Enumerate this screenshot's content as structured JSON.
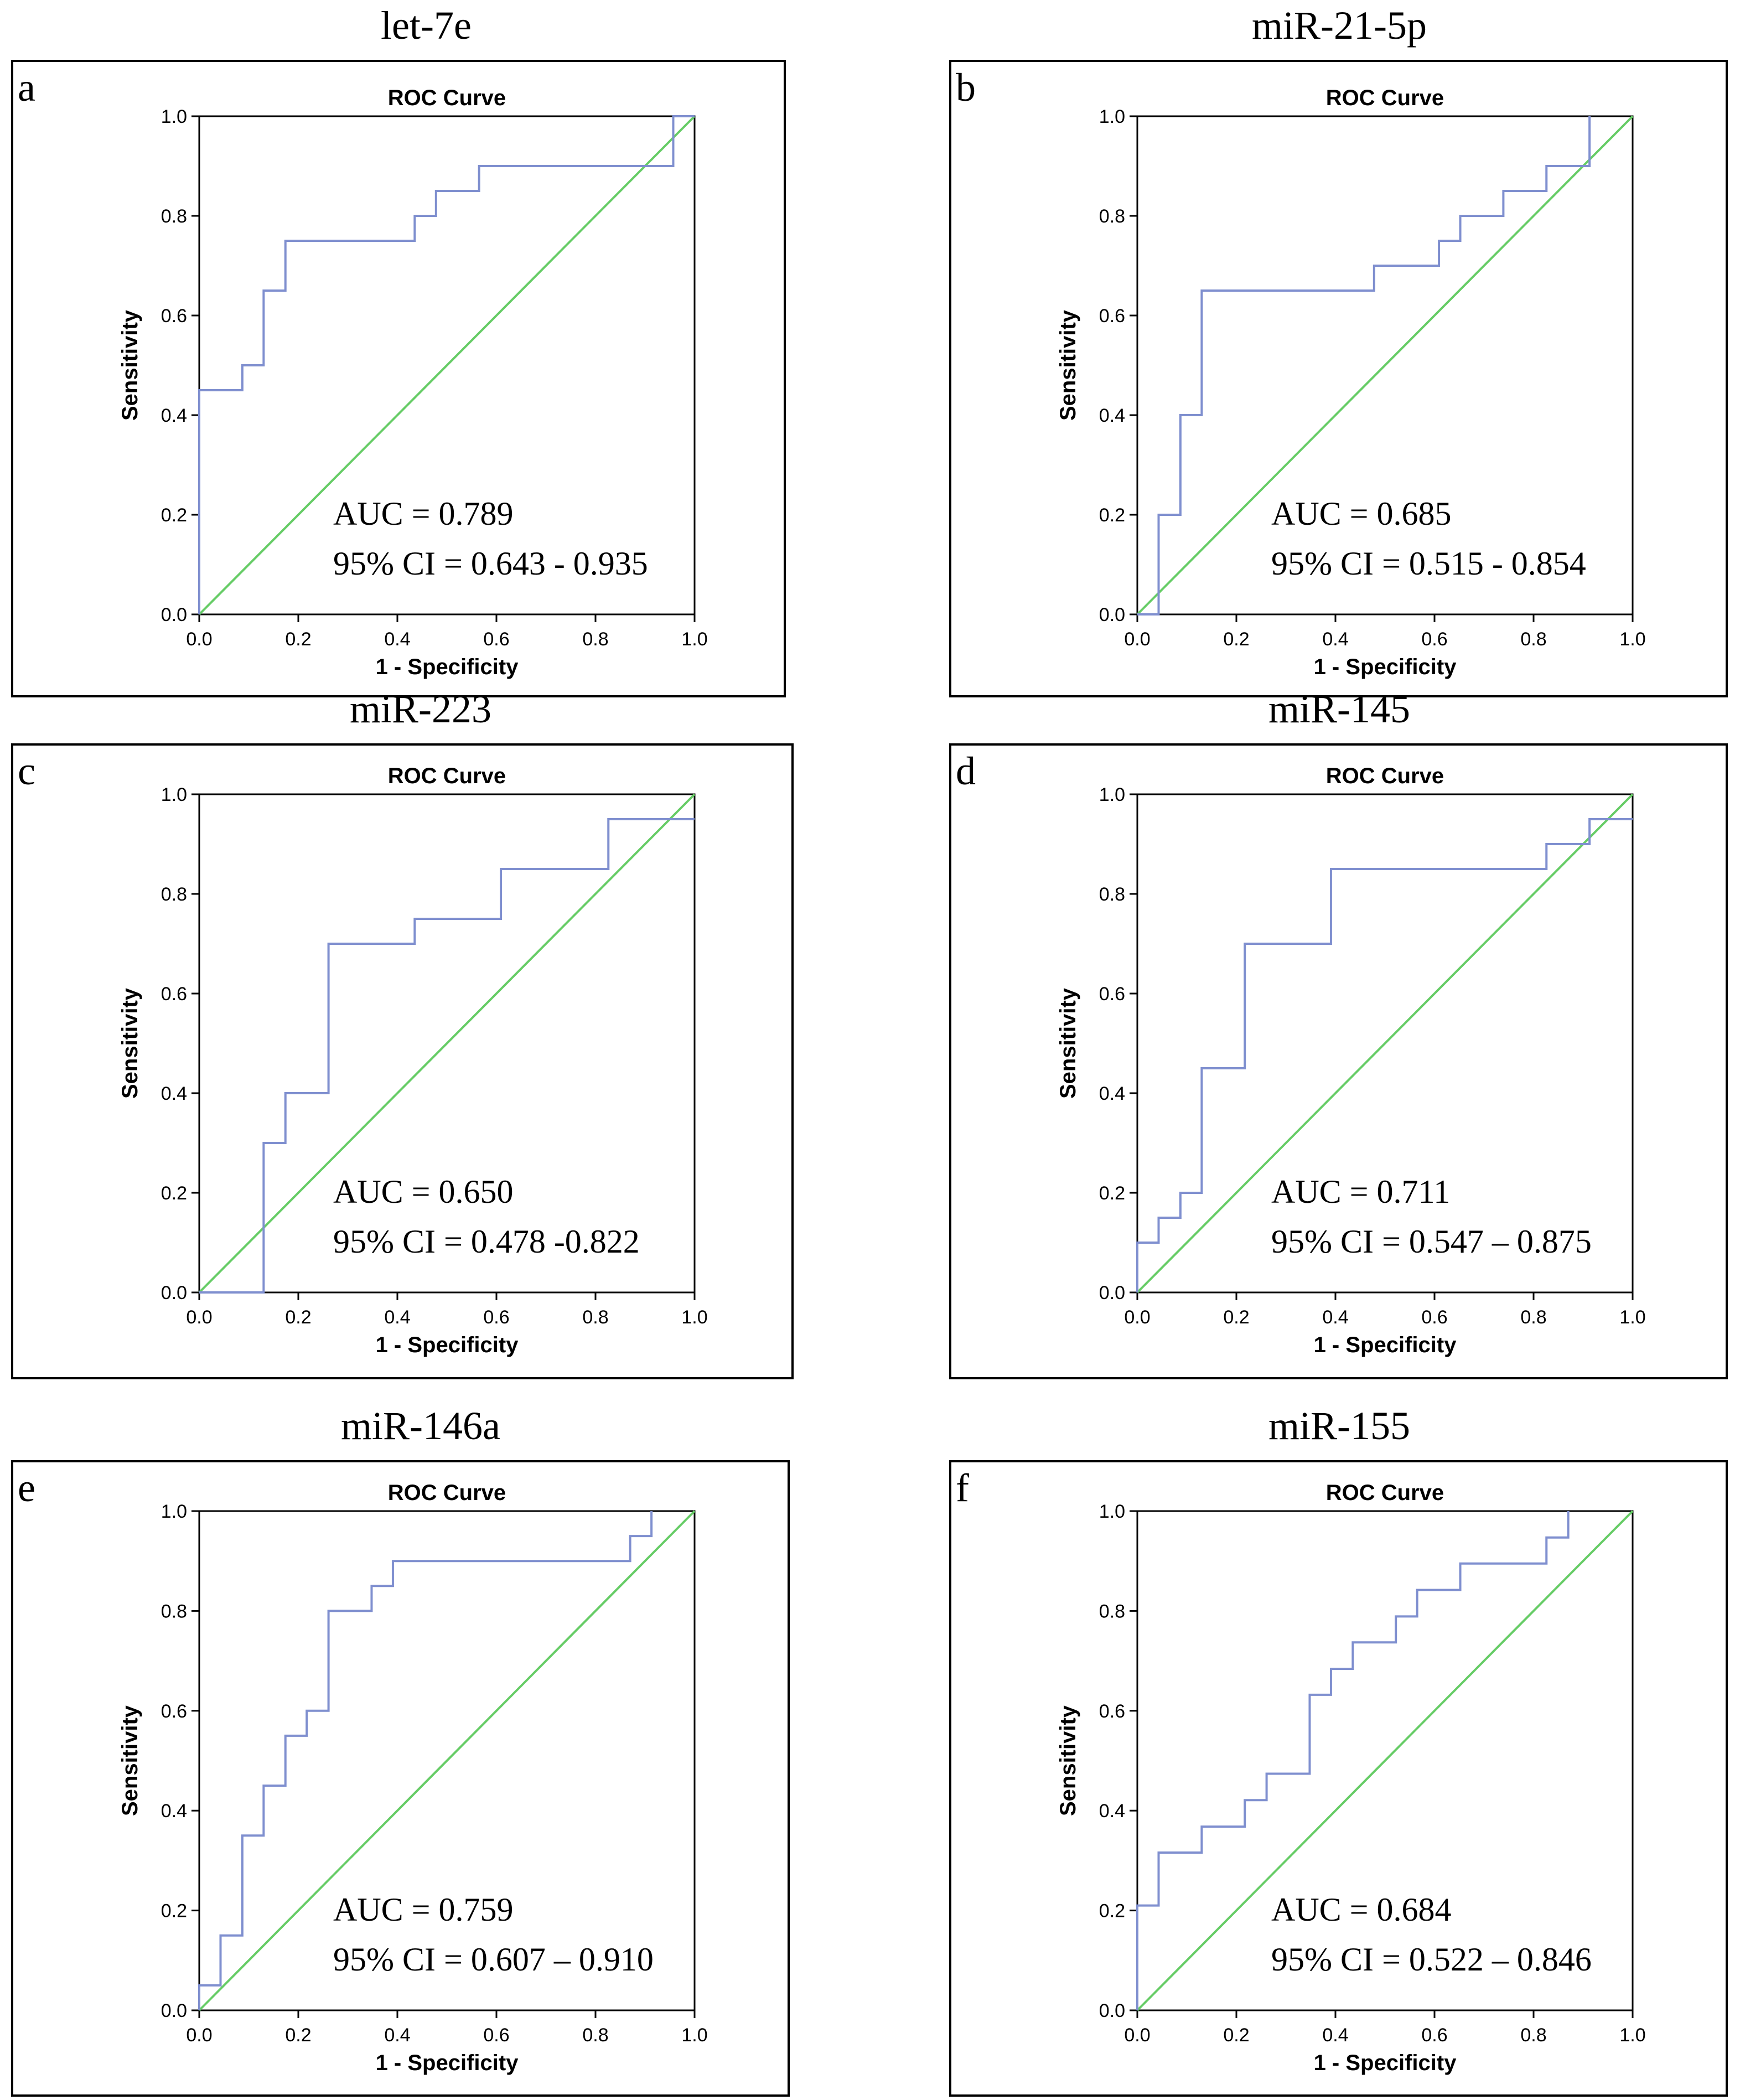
{
  "colors": {
    "roc_curve": "#7f8fcf",
    "reference_line": "#66cc66",
    "frame": "#000000",
    "text": "#000000"
  },
  "chart_data": [
    {
      "type": "line",
      "panel": "a",
      "gene_title": "let-7e",
      "title": "ROC Curve",
      "xlabel": "1 - Specificity",
      "ylabel": "Sensitivity",
      "xlim": [
        0,
        1
      ],
      "ylim": [
        0,
        1
      ],
      "ticks": [
        "0.0",
        "0.2",
        "0.4",
        "0.6",
        "0.8",
        "1.0"
      ],
      "auc_text": "AUC = 0.789",
      "ci_text": "95% CI = 0.643 - 0.935",
      "grid": false,
      "series": [
        {
          "x": [
            0,
            0,
            0.087,
            0.087,
            0.13,
            0.13,
            0.174,
            0.174,
            0.435,
            0.435,
            0.478,
            0.478,
            0.565,
            0.565,
            0.957,
            0.957,
            1.0
          ],
          "y": [
            0,
            0.45,
            0.45,
            0.5,
            0.5,
            0.65,
            0.65,
            0.75,
            0.75,
            0.8,
            0.8,
            0.85,
            0.85,
            0.9,
            0.9,
            1.0,
            1.0
          ]
        },
        {
          "x": [
            0,
            1
          ],
          "y": [
            0,
            1
          ]
        }
      ]
    },
    {
      "type": "line",
      "panel": "b",
      "gene_title": "miR-21-5p",
      "title": "ROC Curve",
      "xlabel": "1 - Specificity",
      "ylabel": "Sensitivity",
      "xlim": [
        0,
        1
      ],
      "ylim": [
        0,
        1
      ],
      "ticks": [
        "0.0",
        "0.2",
        "0.4",
        "0.6",
        "0.8",
        "1.0"
      ],
      "auc_text": "AUC = 0.685",
      "ci_text": "95% CI = 0.515 - 0.854",
      "grid": false,
      "series": [
        {
          "x": [
            0,
            0.043,
            0.043,
            0.087,
            0.087,
            0.13,
            0.13,
            0.478,
            0.478,
            0.609,
            0.609,
            0.652,
            0.652,
            0.739,
            0.739,
            0.826,
            0.826,
            0.913,
            0.913
          ],
          "y": [
            0,
            0,
            0.2,
            0.2,
            0.4,
            0.4,
            0.65,
            0.65,
            0.7,
            0.7,
            0.75,
            0.75,
            0.8,
            0.8,
            0.85,
            0.85,
            0.9,
            0.9,
            1.0
          ]
        },
        {
          "x": [
            0,
            1
          ],
          "y": [
            0,
            1
          ]
        }
      ]
    },
    {
      "type": "line",
      "panel": "c",
      "gene_title": "miR-223",
      "title": "ROC Curve",
      "xlabel": "1 - Specificity",
      "ylabel": "Sensitivity",
      "xlim": [
        0,
        1
      ],
      "ylim": [
        0,
        1
      ],
      "ticks": [
        "0.0",
        "0.2",
        "0.4",
        "0.6",
        "0.8",
        "1.0"
      ],
      "auc_text": "AUC = 0.650",
      "ci_text": "95% CI = 0.478 -0.822",
      "grid": false,
      "series": [
        {
          "x": [
            0,
            0.13,
            0.13,
            0.174,
            0.174,
            0.261,
            0.261,
            0.435,
            0.435,
            0.609,
            0.609,
            0.826,
            0.826,
            1.0
          ],
          "y": [
            0,
            0,
            0.3,
            0.3,
            0.4,
            0.4,
            0.7,
            0.7,
            0.75,
            0.75,
            0.85,
            0.85,
            0.95,
            0.95
          ]
        },
        {
          "x": [
            0,
            1
          ],
          "y": [
            0,
            1
          ]
        }
      ]
    },
    {
      "type": "line",
      "panel": "d",
      "gene_title": "miR-145",
      "title": "ROC Curve",
      "xlabel": "1 - Specificity",
      "ylabel": "Sensitivity",
      "xlim": [
        0,
        1
      ],
      "ylim": [
        0,
        1
      ],
      "ticks": [
        "0.0",
        "0.2",
        "0.4",
        "0.6",
        "0.8",
        "1.0"
      ],
      "auc_text": "AUC = 0.711",
      "ci_text": "95% CI = 0.547 – 0.875",
      "grid": false,
      "series": [
        {
          "x": [
            0,
            0,
            0.043,
            0.043,
            0.087,
            0.087,
            0.13,
            0.13,
            0.217,
            0.217,
            0.391,
            0.391,
            0.826,
            0.826,
            0.913,
            0.913,
            1.0
          ],
          "y": [
            0,
            0.1,
            0.1,
            0.15,
            0.15,
            0.2,
            0.2,
            0.45,
            0.45,
            0.7,
            0.7,
            0.85,
            0.85,
            0.9,
            0.9,
            0.95,
            0.95
          ]
        },
        {
          "x": [
            0,
            1
          ],
          "y": [
            0,
            1
          ]
        }
      ]
    },
    {
      "type": "line",
      "panel": "e",
      "gene_title": "miR-146a",
      "title": "ROC Curve",
      "xlabel": "1 - Specificity",
      "ylabel": "Sensitivity",
      "xlim": [
        0,
        1
      ],
      "ylim": [
        0,
        1
      ],
      "ticks": [
        "0.0",
        "0.2",
        "0.4",
        "0.6",
        "0.8",
        "1.0"
      ],
      "auc_text": "AUC = 0.759",
      "ci_text": "95% CI = 0.607 – 0.910",
      "grid": false,
      "series": [
        {
          "x": [
            0,
            0,
            0.043,
            0.043,
            0.087,
            0.087,
            0.13,
            0.13,
            0.174,
            0.174,
            0.217,
            0.217,
            0.261,
            0.261,
            0.348,
            0.348,
            0.391,
            0.391,
            0.87,
            0.87,
            0.913,
            0.913
          ],
          "y": [
            0,
            0.05,
            0.05,
            0.15,
            0.15,
            0.35,
            0.35,
            0.45,
            0.45,
            0.55,
            0.55,
            0.6,
            0.6,
            0.8,
            0.8,
            0.85,
            0.85,
            0.9,
            0.9,
            0.95,
            0.95,
            1.0
          ]
        },
        {
          "x": [
            0,
            1
          ],
          "y": [
            0,
            1
          ]
        }
      ]
    },
    {
      "type": "line",
      "panel": "f",
      "gene_title": "miR-155",
      "title": "ROC Curve",
      "xlabel": "1 - Specificity",
      "ylabel": "Sensitivity",
      "xlim": [
        0,
        1
      ],
      "ylim": [
        0,
        1
      ],
      "ticks": [
        "0.0",
        "0.2",
        "0.4",
        "0.6",
        "0.8",
        "1.0"
      ],
      "auc_text": "AUC = 0.684",
      "ci_text": "95% CI = 0.522 – 0.846",
      "grid": false,
      "series": [
        {
          "x": [
            0,
            0,
            0.043,
            0.043,
            0.13,
            0.13,
            0.217,
            0.217,
            0.261,
            0.261,
            0.348,
            0.348,
            0.391,
            0.391,
            0.435,
            0.435,
            0.522,
            0.522,
            0.565,
            0.565,
            0.652,
            0.652,
            0.826,
            0.826,
            0.87,
            0.87
          ],
          "y": [
            0,
            0.21,
            0.21,
            0.316,
            0.316,
            0.368,
            0.368,
            0.421,
            0.421,
            0.474,
            0.474,
            0.632,
            0.632,
            0.684,
            0.684,
            0.737,
            0.737,
            0.789,
            0.789,
            0.842,
            0.842,
            0.895,
            0.895,
            0.947,
            0.947,
            1.0
          ]
        },
        {
          "x": [
            0,
            1
          ],
          "y": [
            0,
            1
          ]
        }
      ]
    }
  ]
}
